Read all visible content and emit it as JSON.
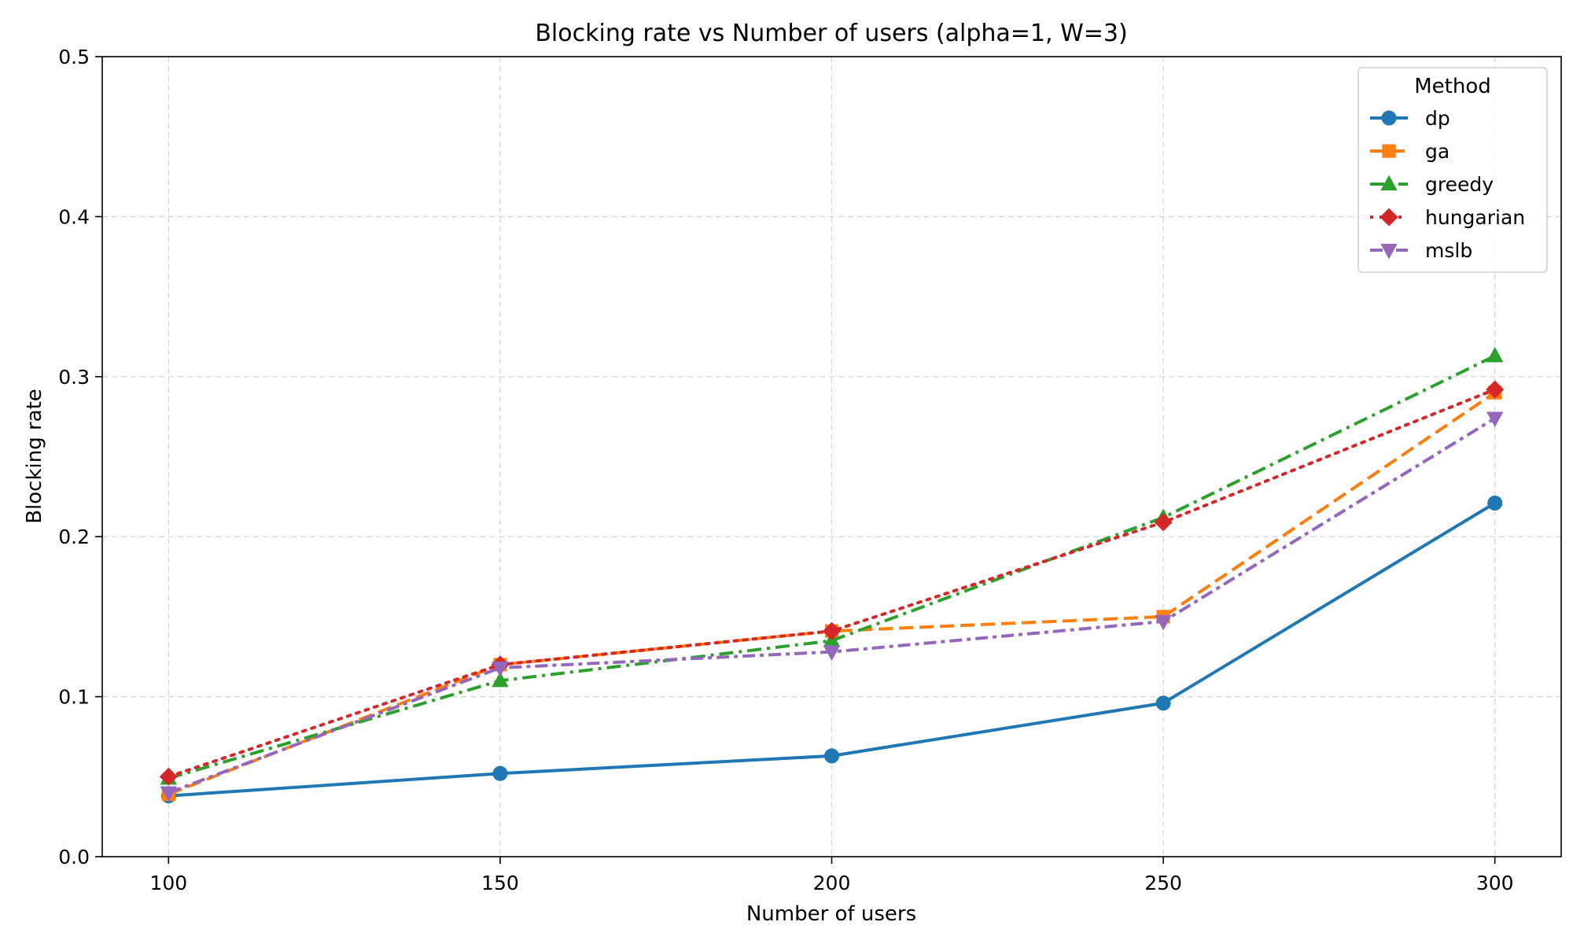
{
  "chart_data": {
    "type": "line",
    "title": "Blocking rate vs Number of users (alpha=1, W=3)",
    "xlabel": "Number of users",
    "ylabel": "Blocking rate",
    "x": [
      100,
      150,
      200,
      250,
      300
    ],
    "x_ticks": [
      "100",
      "150",
      "200",
      "250",
      "300"
    ],
    "y_ticks": [
      "0.0",
      "0.1",
      "0.2",
      "0.3",
      "0.4",
      "0.5"
    ],
    "xlim": [
      90,
      310
    ],
    "ylim": [
      0,
      0.5
    ],
    "grid": true,
    "legend": {
      "title": "Method",
      "position": "top-right"
    },
    "series": [
      {
        "name": "dp",
        "values": [
          0.038,
          0.052,
          0.063,
          0.096,
          0.221
        ],
        "color": "#1f77b4",
        "marker": "circle",
        "linestyle": "solid"
      },
      {
        "name": "ga",
        "values": [
          0.039,
          0.12,
          0.141,
          0.15,
          0.29
        ],
        "color": "#ff7f0e",
        "marker": "square",
        "linestyle": "dashed"
      },
      {
        "name": "greedy",
        "values": [
          0.049,
          0.11,
          0.135,
          0.212,
          0.313
        ],
        "color": "#2ca02c",
        "marker": "triangle-up",
        "linestyle": "dashdot"
      },
      {
        "name": "hungarian",
        "values": [
          0.05,
          0.12,
          0.141,
          0.209,
          0.292
        ],
        "color": "#d62728",
        "marker": "diamond",
        "linestyle": "dotted"
      },
      {
        "name": "mslb",
        "values": [
          0.04,
          0.118,
          0.128,
          0.147,
          0.274
        ],
        "color": "#9467bd",
        "marker": "triangle-down",
        "linestyle": "dashdot-long"
      }
    ]
  }
}
